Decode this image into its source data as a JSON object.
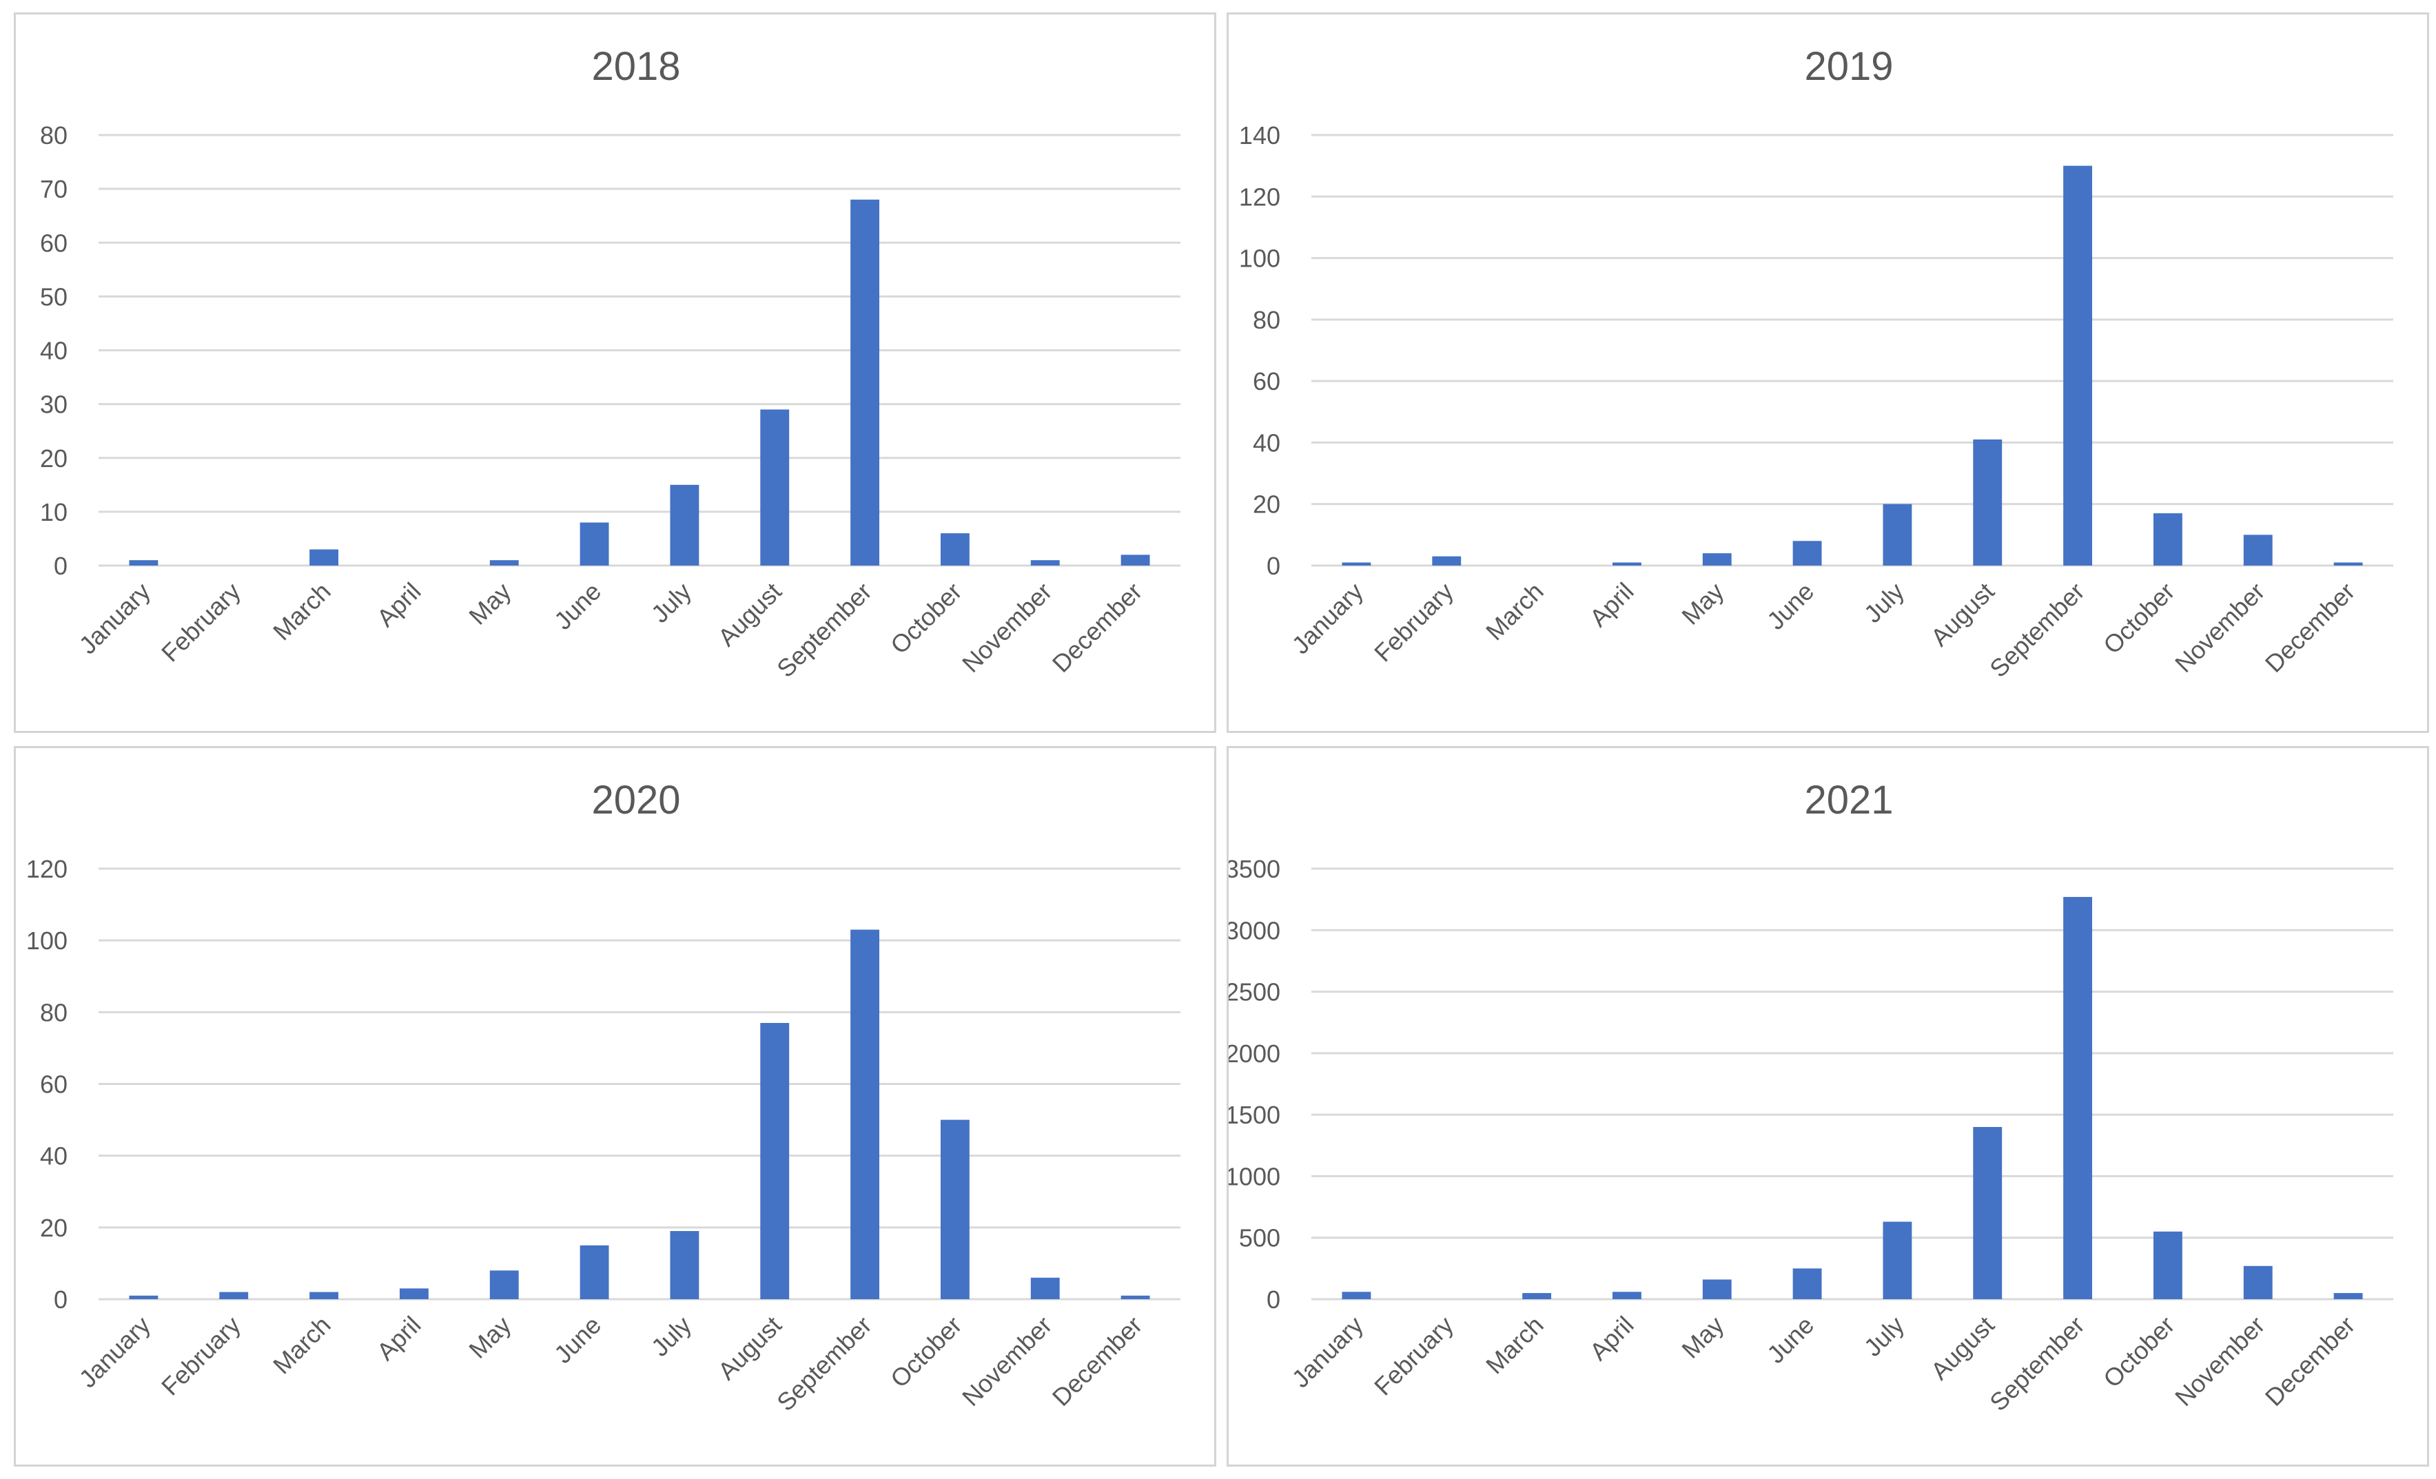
{
  "colors": {
    "bar": "#4472C4",
    "grid": "#d9d9d9",
    "text": "#595959",
    "border": "#d4d4d4"
  },
  "months": [
    "January",
    "February",
    "March",
    "April",
    "May",
    "June",
    "July",
    "August",
    "September",
    "October",
    "November",
    "December"
  ],
  "chart_data": [
    {
      "type": "bar",
      "title": "2018",
      "categories": [
        "January",
        "February",
        "March",
        "April",
        "May",
        "June",
        "July",
        "August",
        "September",
        "October",
        "November",
        "December"
      ],
      "values": [
        1,
        0,
        3,
        0,
        1,
        8,
        15,
        29,
        68,
        6,
        1,
        2
      ],
      "ylim": [
        0,
        80
      ],
      "yticks": [
        0,
        10,
        20,
        30,
        40,
        50,
        60,
        70,
        80
      ],
      "grid": true,
      "legend": "none"
    },
    {
      "type": "bar",
      "title": "2019",
      "categories": [
        "January",
        "February",
        "March",
        "April",
        "May",
        "June",
        "July",
        "August",
        "September",
        "October",
        "November",
        "December"
      ],
      "values": [
        1,
        3,
        0,
        1,
        4,
        8,
        20,
        41,
        130,
        17,
        10,
        1
      ],
      "ylim": [
        0,
        140
      ],
      "yticks": [
        0,
        20,
        40,
        60,
        80,
        100,
        120,
        140
      ],
      "grid": true,
      "legend": "none"
    },
    {
      "type": "bar",
      "title": "2020",
      "categories": [
        "January",
        "February",
        "March",
        "April",
        "May",
        "June",
        "July",
        "August",
        "September",
        "October",
        "November",
        "December"
      ],
      "values": [
        1,
        2,
        2,
        3,
        8,
        15,
        19,
        77,
        103,
        50,
        6,
        1
      ],
      "ylim": [
        0,
        120
      ],
      "yticks": [
        0,
        20,
        40,
        60,
        80,
        100,
        120
      ],
      "grid": true,
      "legend": "none"
    },
    {
      "type": "bar",
      "title": "2021",
      "categories": [
        "January",
        "February",
        "March",
        "April",
        "May",
        "June",
        "July",
        "August",
        "September",
        "October",
        "November",
        "December"
      ],
      "values": [
        60,
        0,
        50,
        60,
        160,
        250,
        630,
        1400,
        3270,
        550,
        270,
        50
      ],
      "ylim": [
        0,
        3500
      ],
      "yticks": [
        0,
        500,
        1000,
        1500,
        2000,
        2500,
        3000,
        3500
      ],
      "grid": true,
      "legend": "none"
    }
  ]
}
